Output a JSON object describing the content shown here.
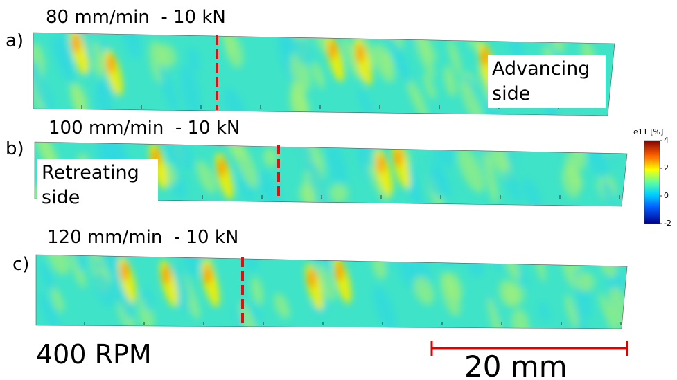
{
  "panels": [
    {
      "label": "a)",
      "title": "80 mm/min  - 10 kN",
      "note": "Advancing side"
    },
    {
      "label": "b)",
      "title": "100 mm/min  - 10 kN",
      "note": "Retreating side"
    },
    {
      "label": "c)",
      "title": "120 mm/min  - 10 kN"
    }
  ],
  "colorbar": {
    "title": "e11 [%]",
    "lim": [
      -2,
      4
    ],
    "ticks": [
      4,
      2,
      0,
      -2
    ]
  },
  "speed": "400 RPM",
  "scale_bar": "20 mm"
}
